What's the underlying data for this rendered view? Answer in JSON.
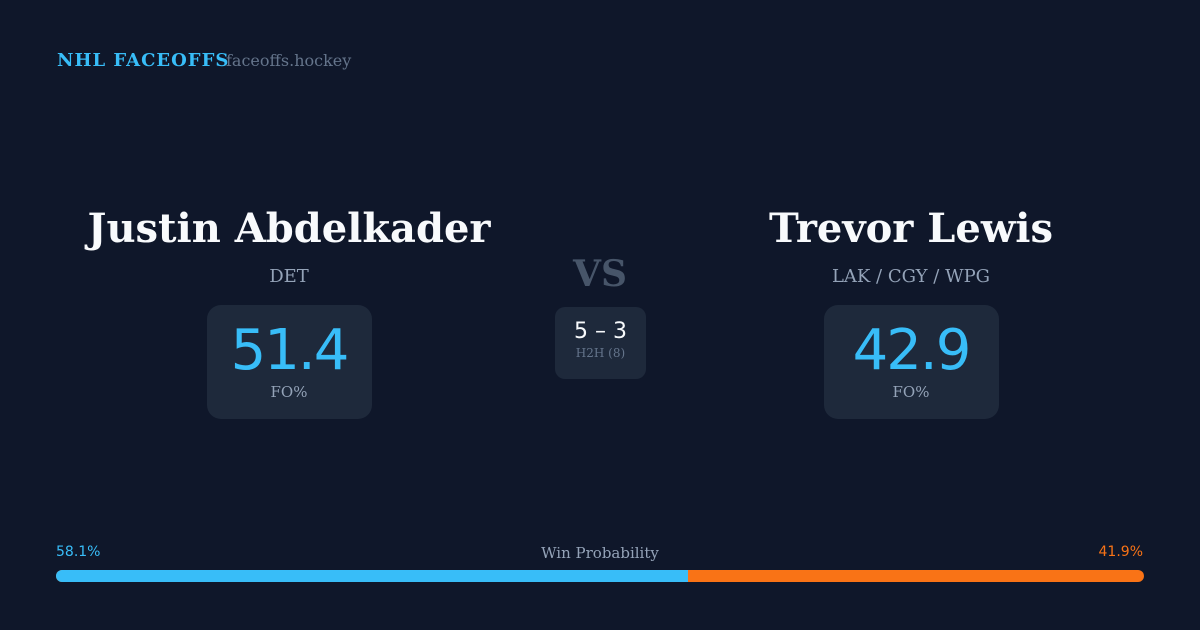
{
  "header": {
    "brand": "NHL FACEOFFS",
    "domain": "faceoffs.hockey"
  },
  "player1": {
    "name": "Justin Abdelkader",
    "team": "DET",
    "fo_pct": "51.4",
    "fo_label": "FO%"
  },
  "player2": {
    "name": "Trevor Lewis",
    "team": "LAK / CGY / WPG",
    "fo_pct": "42.9",
    "fo_label": "FO%"
  },
  "vs": "VS",
  "h2h": {
    "score": "5 – 3",
    "label": "H2H (8)"
  },
  "win_probability": {
    "label": "Win Probability",
    "left": "58.1%",
    "right": "41.9%",
    "left_value": 58.1,
    "colors": {
      "left": "#38bdf8",
      "right": "#f97316"
    }
  }
}
